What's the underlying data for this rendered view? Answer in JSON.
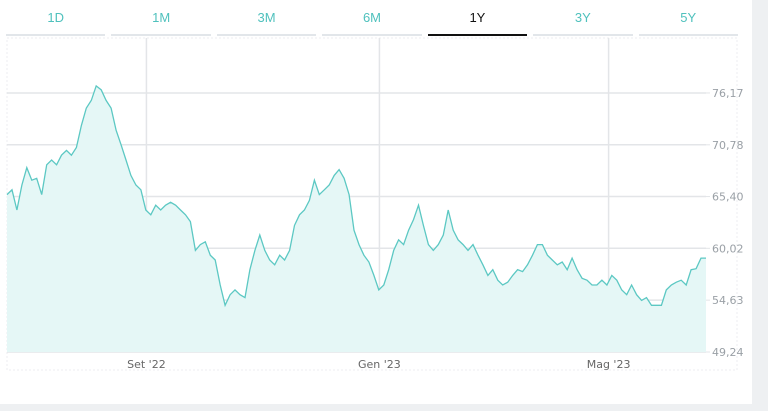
{
  "tabs": [
    {
      "label": "1D"
    },
    {
      "label": "1M"
    },
    {
      "label": "3M"
    },
    {
      "label": "6M"
    },
    {
      "label": "1Y",
      "active": true
    },
    {
      "label": "3Y"
    },
    {
      "label": "5Y"
    }
  ],
  "chart_data": {
    "type": "area",
    "title": "",
    "xlabel": "",
    "ylabel": "",
    "x_range": [
      "2022-06-20",
      "2023-06-21"
    ],
    "x_ticks": [
      {
        "label": "Set '22",
        "date": "2022-09-01"
      },
      {
        "label": "Gen '23",
        "date": "2023-01-01"
      },
      {
        "label": "Mag '23",
        "date": "2023-05-01"
      }
    ],
    "y_ticks": [
      "76,17",
      "70,78",
      "65,40",
      "60,02",
      "54,63",
      "49,24"
    ],
    "y_tick_values": [
      76.17,
      70.78,
      65.4,
      60.02,
      54.63,
      49.24
    ],
    "ylim": [
      49.24,
      79.0
    ],
    "grid": true,
    "colors": {
      "line": "#5cc8c3",
      "fill": "#e5f7f6",
      "grid": "#e3e5e8"
    },
    "values": [
      65.6,
      66.1,
      64.0,
      66.6,
      68.4,
      67.1,
      67.3,
      65.6,
      68.7,
      69.2,
      68.7,
      69.7,
      70.2,
      69.7,
      70.5,
      72.8,
      74.6,
      75.4,
      76.9,
      76.5,
      75.4,
      74.6,
      72.3,
      70.8,
      69.2,
      67.6,
      66.6,
      66.1,
      64.0,
      63.5,
      64.5,
      64.0,
      64.5,
      64.8,
      64.5,
      64.0,
      63.5,
      62.8,
      59.8,
      60.4,
      60.7,
      59.3,
      58.8,
      56.2,
      54.1,
      55.2,
      55.7,
      55.2,
      54.9,
      57.8,
      59.8,
      61.4,
      59.8,
      58.8,
      58.3,
      59.3,
      58.8,
      59.8,
      62.4,
      63.5,
      64.0,
      65.0,
      67.1,
      65.6,
      66.1,
      66.6,
      67.6,
      68.2,
      67.3,
      65.6,
      61.9,
      60.4,
      59.3,
      58.6,
      57.2,
      55.7,
      56.2,
      57.8,
      59.8,
      60.9,
      60.4,
      61.9,
      63.0,
      64.5,
      62.4,
      60.4,
      59.8,
      60.4,
      61.4,
      64.0,
      61.9,
      60.9,
      60.4,
      59.8,
      60.4,
      59.3,
      58.3,
      57.2,
      57.8,
      56.7,
      56.2,
      56.5,
      57.2,
      57.8,
      57.6,
      58.3,
      59.3,
      60.4,
      60.4,
      59.3,
      58.8,
      58.3,
      58.6,
      57.8,
      59.0,
      57.8,
      56.9,
      56.7,
      56.2,
      56.2,
      56.7,
      56.2,
      57.2,
      56.7,
      55.7,
      55.2,
      56.2,
      55.2,
      54.6,
      54.9,
      54.1,
      54.1,
      54.1,
      55.7,
      56.2,
      56.5,
      56.7,
      56.2,
      57.8,
      57.9,
      59.0,
      59.0
    ]
  }
}
